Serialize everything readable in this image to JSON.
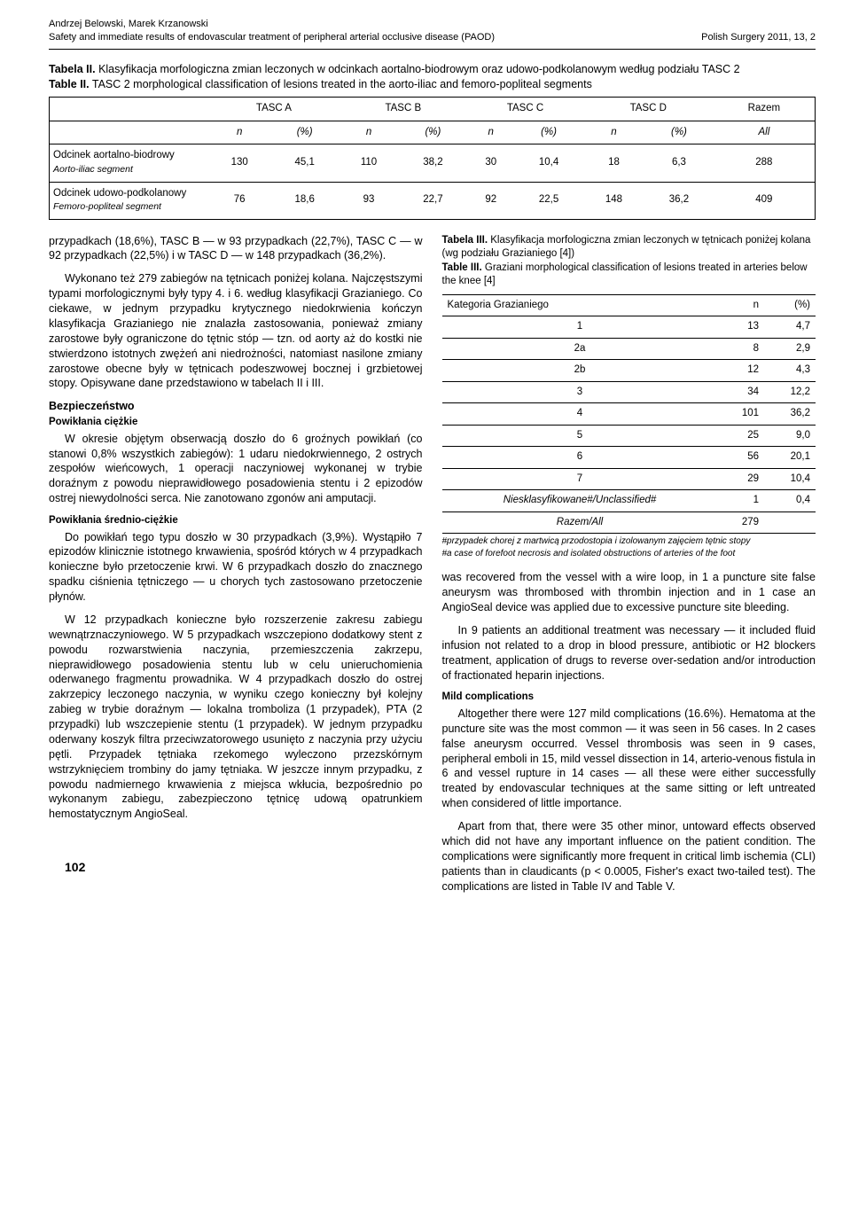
{
  "header": {
    "authors": "Andrzej Belowski, Marek Krzanowski",
    "title": "Safety and immediate results of endovascular treatment of peripheral arterial occlusive disease (PAOD)",
    "journal": "Polish Surgery 2011, 13, 2"
  },
  "table2": {
    "cap_pl_lbl": "Tabela II.",
    "cap_pl_txt": "Klasyfikacja morfologiczna zmian leczonych w odcinkach aortalno-biodrowym oraz udowo-podkolanowym według podziału TASC 2",
    "cap_en_lbl": "Table II.",
    "cap_en_txt": "TASC 2 morphological classification of lesions treated in the aorto-iliac and femoro-popliteal segments",
    "hdr": [
      "TASC A",
      "TASC B",
      "TASC C",
      "TASC D",
      "Razem"
    ],
    "sub": [
      "n",
      "(%)",
      "n",
      "(%)",
      "n",
      "(%)",
      "n",
      "(%)",
      "All"
    ],
    "r1_lbl": "Odcinek aortalno-biodrowy",
    "r1_sub": "Aorto-iliac segment",
    "r1": [
      "130",
      "45,1",
      "110",
      "38,2",
      "30",
      "10,4",
      "18",
      "6,3",
      "288"
    ],
    "r2_lbl": "Odcinek udowo-podkolanowy",
    "r2_sub": "Femoro-popliteal segment",
    "r2": [
      "76",
      "18,6",
      "93",
      "22,7",
      "92",
      "22,5",
      "148",
      "36,2",
      "409"
    ]
  },
  "left": {
    "p1": "przypadkach (18,6%), TASC B — w 93 przypadkach (22,7%), TASC C — w 92 przypadkach (22,5%) i w TASC D — w 148 przypadkach (36,2%).",
    "p2": "Wykonano też 279 zabiegów na tętnicach poniżej kolana. Najczęstszymi typami morfologicznymi były typy 4. i 6. według klasyfikacji Grazianiego. Co ciekawe, w jednym przypadku krytycznego niedokrwienia kończyn klasyfikacja Grazianiego nie znalazła zastosowania, ponieważ zmiany zarostowe były ograniczone do tętnic stóp — tzn. od aorty aż do kostki nie stwierdzono istotnych zwężeń ani niedrożności, natomiast nasilone zmiany zarostowe obecne były w tętnicach podeszwowej bocznej i grzbietowej stopy. Opisywane dane przedstawiono w tabelach II i III.",
    "h_bezp": "Bezpieczeństwo",
    "h_ci": "Powikłania ciężkie",
    "p3": "W okresie objętym obserwacją doszło do 6 groźnych powikłań (co stanowi 0,8% wszystkich zabiegów): 1 udaru niedokrwiennego, 2 ostrych zespołów wieńcowych, 1 operacji naczyniowej wykonanej w trybie doraźnym z powodu nieprawidłowego posadowienia stentu i 2 epizodów ostrej niewydolności serca. Nie zanotowano zgonów ani amputacji.",
    "h_sr": "Powikłania średnio-ciężkie",
    "p4": "Do powikłań tego typu doszło w 30 przypadkach (3,9%). Wystąpiło 7 epizodów klinicznie istotnego krwawienia, spośród których w 4 przypadkach konieczne było przetoczenie krwi. W 6 przypadkach doszło do znacznego spadku ciśnienia tętniczego — u chorych tych zastosowano przetoczenie płynów.",
    "p5": "W 12 przypadkach konieczne było rozszerzenie zakresu zabiegu wewnątrznaczyniowego. W 5 przypadkach wszczepiono dodatkowy stent z powodu rozwarstwienia naczynia, przemieszczenia zakrzepu, nieprawidłowego posadowienia stentu lub w celu unieruchomienia oderwanego fragmentu prowadnika. W 4 przypadkach doszło do ostrej zakrzepicy leczonego naczynia, w wyniku czego konieczny był kolejny zabieg w trybie doraźnym — lokalna tromboliza (1 przypadek), PTA (2 przypadki) lub wszczepienie stentu (1 przypadek). W jednym przypadku oderwany koszyk filtra przeciwzatorowego usunięto z naczynia przy użyciu pętli. Przypadek tętniaka rzekomego wyleczono przezskórnym wstrzyknięciem trombiny do jamy tętniaka. W jeszcze innym przypadku, z powodu nadmiernego krwawienia z miejsca wkłucia, bezpośrednio po wykonanym zabiegu, zabezpieczono tętnicę udową opatrunkiem hemostatycznym AngioSeal."
  },
  "table3": {
    "cap_pl_lbl": "Tabela III.",
    "cap_pl_txt": "Klasyfikacja morfologiczna zmian leczonych w tętnicach poniżej kolana (wg podziału Grazianiego [4])",
    "cap_en_lbl": "Table III.",
    "cap_en_txt": "Graziani morphological classification of lesions treated in arteries below the knee [4]",
    "hdr": [
      "Kategoria Grazianiego",
      "n",
      "(%)"
    ],
    "rows": [
      [
        "1",
        "13",
        "4,7"
      ],
      [
        "2a",
        "8",
        "2,9"
      ],
      [
        "2b",
        "12",
        "4,3"
      ],
      [
        "3",
        "34",
        "12,2"
      ],
      [
        "4",
        "101",
        "36,2"
      ],
      [
        "5",
        "25",
        "9,0"
      ],
      [
        "6",
        "56",
        "20,1"
      ],
      [
        "7",
        "29",
        "10,4"
      ]
    ],
    "r_unclass_lbl": "Niesklasyfikowane#/Unclassified#",
    "r_unclass": [
      "1",
      "0,4"
    ],
    "r_total_lbl": "Razem/All",
    "r_total": [
      "279",
      ""
    ],
    "foot": "#przypadek chorej z martwicą przodostopia i izolowanym zajęciem tętnic stopy\n#a case of forefoot necrosis and isolated obstructions of arteries of the foot"
  },
  "right": {
    "p1": "was recovered from the vessel with a wire loop, in 1 a puncture site false aneurysm was thrombosed with thrombin injection and in 1 case an AngioSeal device was applied due to excessive puncture site bleeding.",
    "p2": "In 9 patients an additional treatment was necessary — it included fluid infusion not related to a drop in blood pressure, antibiotic or H2 blockers treatment, application of drugs to reverse over-sedation and/or introduction of fractionated heparin injections.",
    "h_mild": "Mild complications",
    "p3": "Altogether there were 127 mild complications (16.6%). Hematoma at the puncture site was the most common — it was seen in 56 cases. In 2 cases false aneurysm occurred. Vessel thrombosis was seen in 9 cases, peripheral emboli in 15, mild vessel dissection in 14, arterio-venous fistula in 6 and vessel rupture in 14 cases — all these were either successfully treated by endovascular techniques at the same sitting or left untreated when considered of little importance.",
    "p4": "Apart from that, there were 35 other minor, untoward effects observed which did not have any important influence on the patient condition. The complications were significantly more frequent in critical limb ischemia (CLI) patients than in claudicants (p < 0.0005, Fisher's exact two-tailed test). The complications are listed in Table IV and Table V."
  },
  "pagenum": "102"
}
